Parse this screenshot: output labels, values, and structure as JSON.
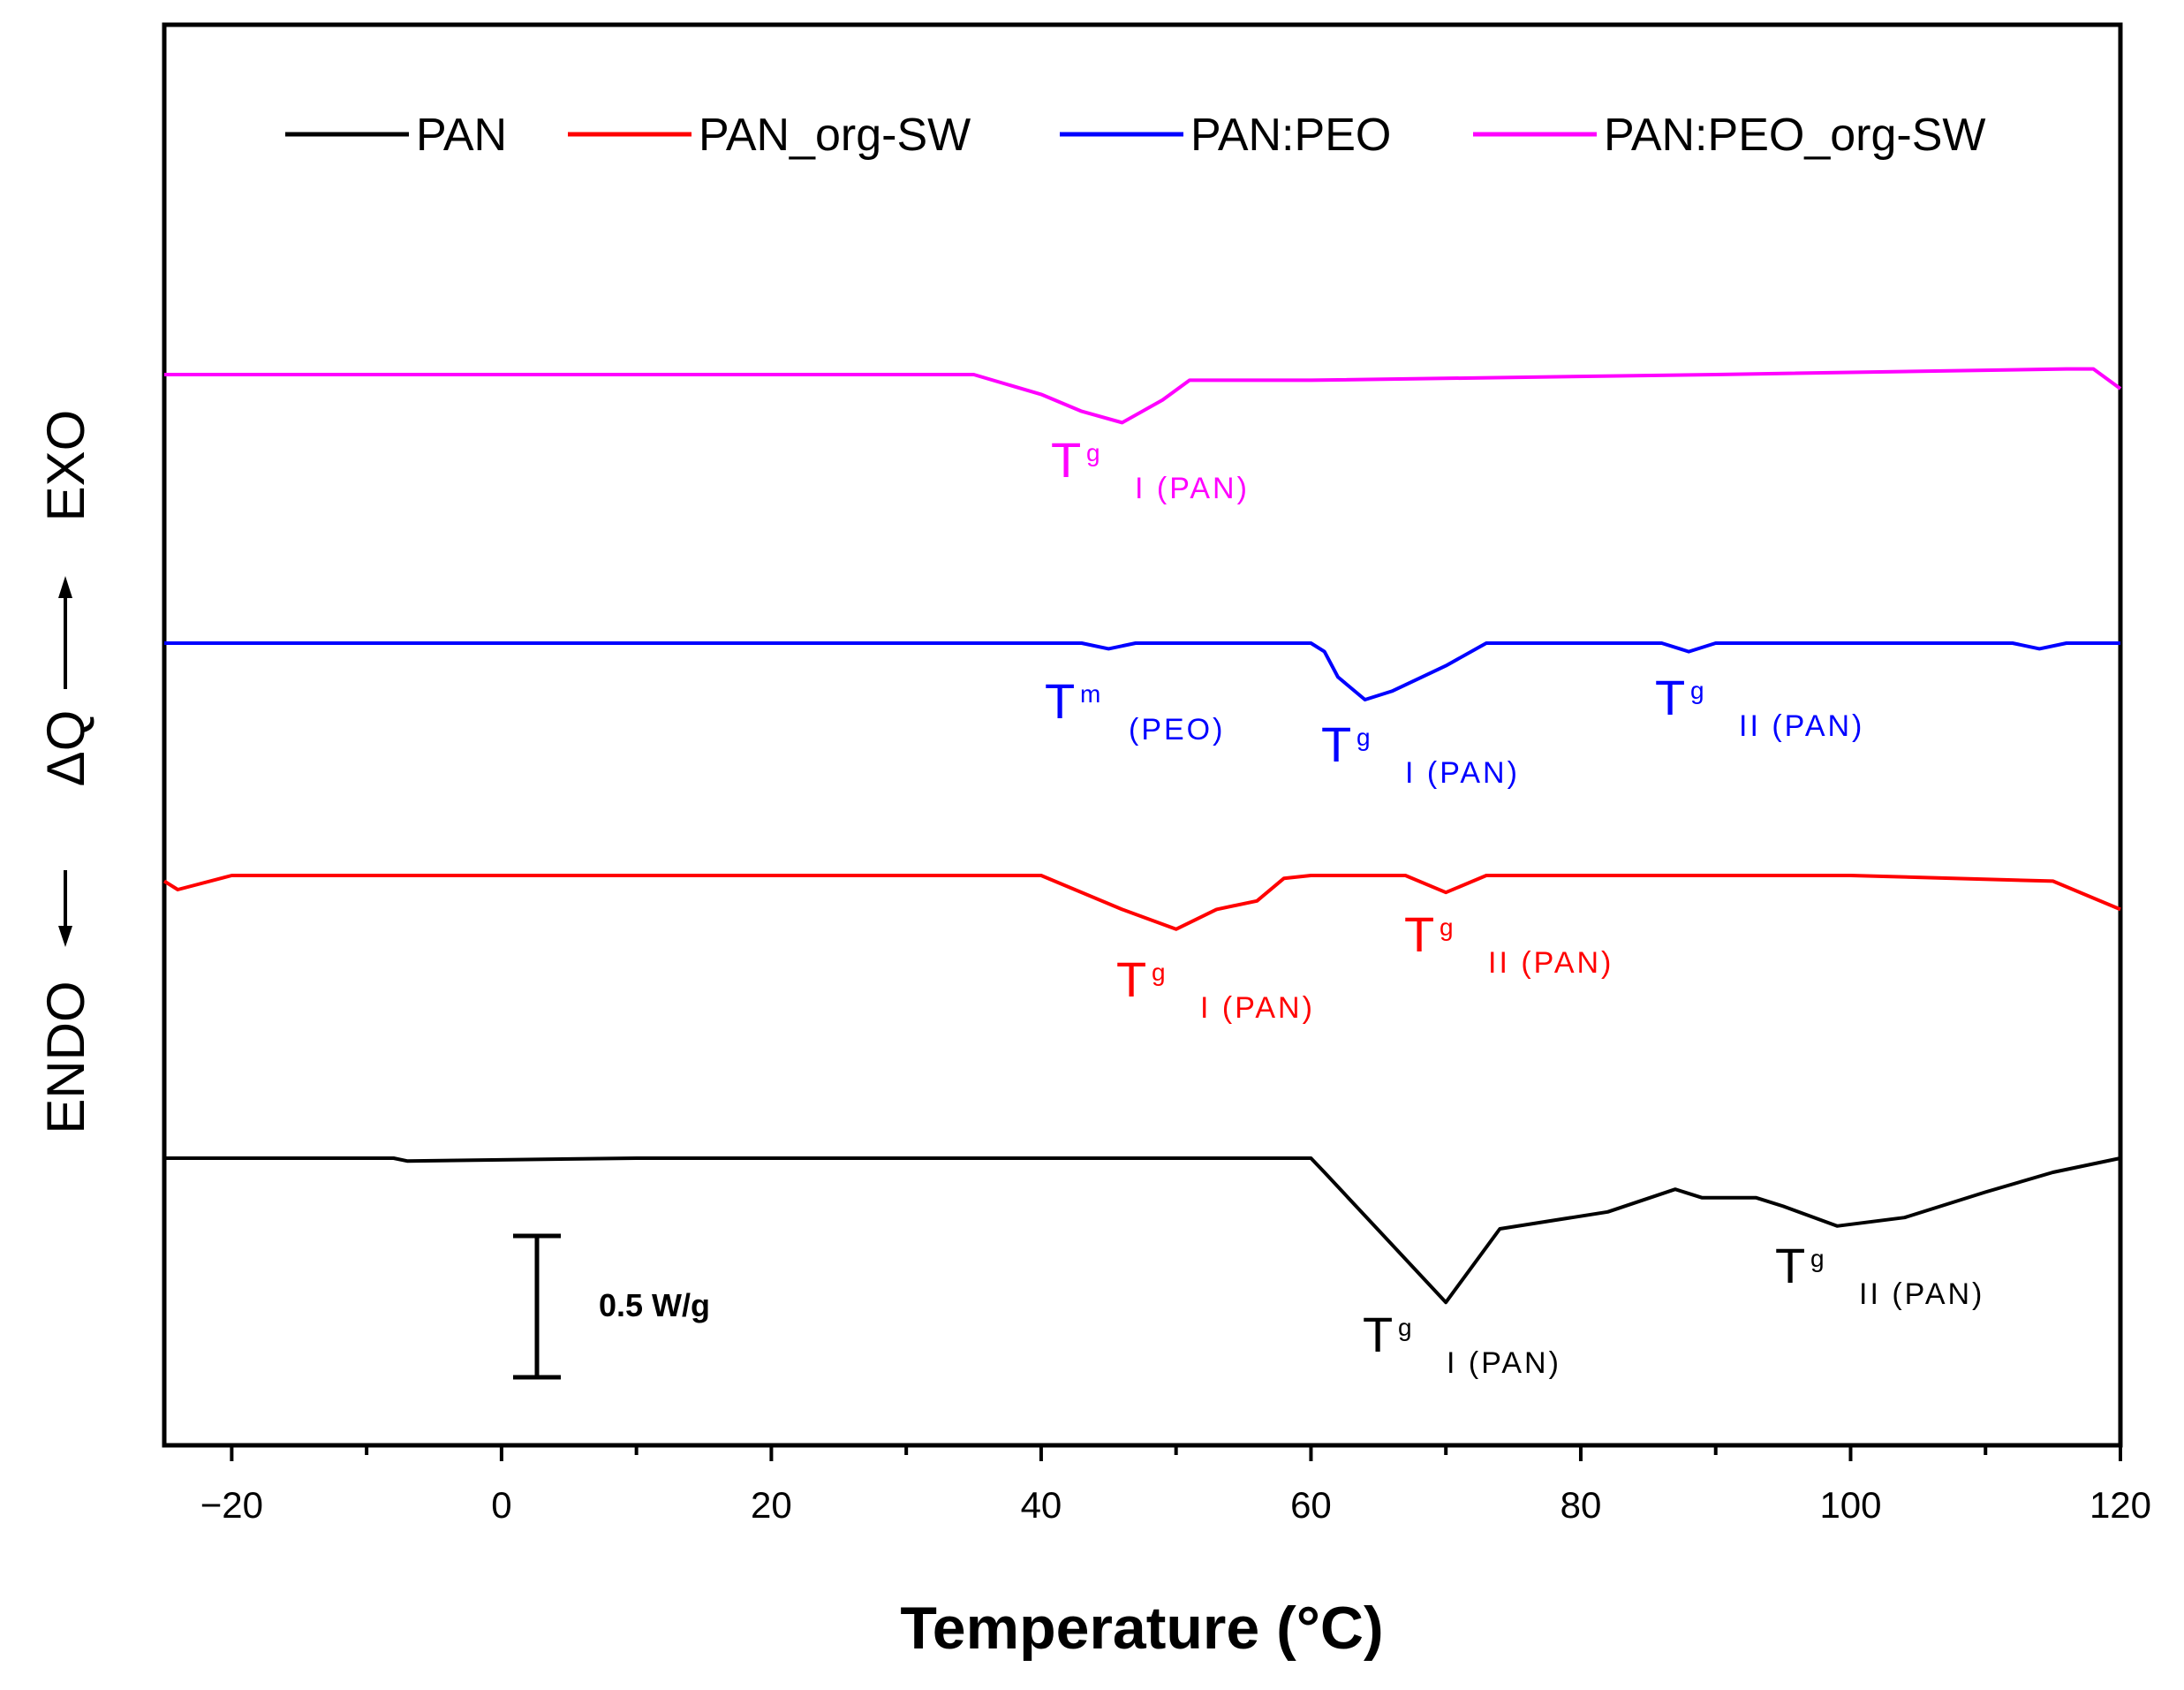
{
  "chart_data": {
    "type": "line",
    "xlabel": "Temperature (°C)",
    "ylabel": {
      "endo": "ENDO",
      "delta": "ΔQ",
      "exo": "EXO"
    },
    "xlim": [
      -25,
      120
    ],
    "x_ticks": [
      -20,
      0,
      20,
      40,
      60,
      80,
      100,
      120
    ],
    "scale_bar_label": "0.5 W/g",
    "scale_bar_value": 0.5,
    "legend_position": "top",
    "series": [
      {
        "name": "PAN",
        "color": "#000000",
        "x": [
          -25,
          -8,
          -7,
          10,
          40,
          60,
          61,
          70,
          74,
          78,
          82,
          87,
          89,
          93,
          95,
          99,
          104,
          110,
          115,
          120
        ],
        "y": [
          0,
          0,
          -0.01,
          0,
          0,
          0,
          -0.05,
          -0.51,
          -0.25,
          -0.22,
          -0.19,
          -0.11,
          -0.14,
          -0.14,
          -0.17,
          -0.24,
          -0.21,
          -0.12,
          -0.05,
          0
        ],
        "annotations": [
          {
            "T": "T",
            "sub": "g",
            "subsub": "I (PAN)"
          },
          {
            "T": "T",
            "sub": "g",
            "subsub": "II (PAN)"
          }
        ]
      },
      {
        "name": "PAN_org-SW",
        "color": "#ff0000",
        "x": [
          -25,
          -24,
          -20,
          0,
          40,
          46,
          50,
          53,
          56,
          58,
          60,
          67,
          70,
          73,
          100,
          115,
          120
        ],
        "y": [
          -0.02,
          -0.05,
          0,
          0,
          0,
          -0.12,
          -0.19,
          -0.12,
          -0.09,
          -0.01,
          0,
          0,
          -0.06,
          0,
          0,
          -0.02,
          -0.12
        ],
        "annotations": [
          {
            "T": "T",
            "sub": "g",
            "subsub": "I (PAN)"
          },
          {
            "T": "T",
            "sub": "g",
            "subsub": "II (PAN)"
          }
        ]
      },
      {
        "name": "PAN:PEO",
        "color": "#0000ff",
        "x": [
          -25,
          43,
          45,
          47,
          60,
          61,
          62,
          64,
          66,
          70,
          73,
          86,
          88,
          90,
          112,
          114,
          116,
          120
        ],
        "y": [
          0,
          0,
          -0.02,
          0,
          0,
          -0.03,
          -0.12,
          -0.2,
          -0.17,
          -0.08,
          0,
          0,
          -0.03,
          0,
          0,
          -0.02,
          0,
          0
        ],
        "annotations": [
          {
            "T": "T",
            "sub": "m",
            "subsub": "(PEO)"
          },
          {
            "T": "T",
            "sub": "g",
            "subsub": "I (PAN)"
          },
          {
            "T": "T",
            "sub": "g",
            "subsub": "II (PAN)"
          }
        ]
      },
      {
        "name": "PAN:PEO_org-SW",
        "color": "#ff00ff",
        "x": [
          -25,
          0,
          35,
          40,
          43,
          46,
          49,
          51,
          60,
          90,
          116,
          118,
          120
        ],
        "y": [
          0,
          0,
          0,
          -0.07,
          -0.13,
          -0.17,
          -0.09,
          -0.02,
          -0.02,
          0,
          0.02,
          0.02,
          -0.05
        ],
        "annotations": [
          {
            "T": "T",
            "sub": "g",
            "subsub": "I (PAN)"
          }
        ]
      }
    ]
  }
}
